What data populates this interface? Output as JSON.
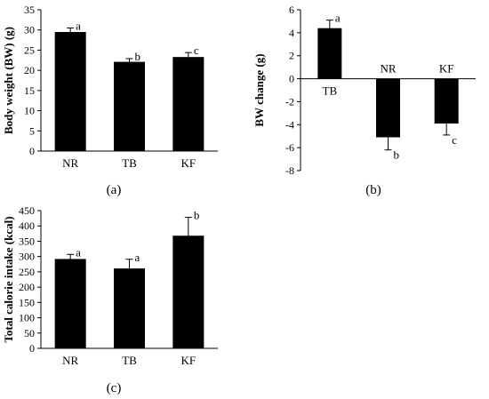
{
  "chart_data": [
    {
      "panel_label": "(a)",
      "type": "bar",
      "ylabel": "Body weight (BW) (g)",
      "xlabel": "",
      "title": "",
      "ylim": [
        0,
        35
      ],
      "yticks": [
        0,
        5,
        10,
        15,
        20,
        25,
        30,
        35
      ],
      "categories": [
        "NR",
        "TB",
        "KF"
      ],
      "values": [
        29.5,
        22.1,
        23.3
      ],
      "errors": [
        1.0,
        0.8,
        1.1
      ],
      "significance": [
        "a",
        "b",
        "c"
      ],
      "bar_color": "#000000",
      "grid": false
    },
    {
      "panel_label": "(b)",
      "type": "bar",
      "ylabel": "BW change (g)",
      "xlabel": "",
      "title": "",
      "ylim": [
        -8,
        6
      ],
      "yticks": [
        -8,
        -6,
        -4,
        -2,
        0,
        2,
        4,
        6
      ],
      "categories": [
        "TB",
        "NR",
        "KF"
      ],
      "values": [
        4.4,
        -5.1,
        -3.9
      ],
      "errors": [
        0.7,
        1.1,
        1.0
      ],
      "significance": [
        "a",
        "b",
        "c"
      ],
      "bar_color": "#000000",
      "grid": false
    },
    {
      "panel_label": "(c)",
      "type": "bar",
      "ylabel": "Total calorie intake (kcal)",
      "xlabel": "",
      "title": "",
      "ylim": [
        0,
        450
      ],
      "yticks": [
        0,
        50,
        100,
        150,
        200,
        250,
        300,
        350,
        400,
        450
      ],
      "categories": [
        "NR",
        "TB",
        "KF"
      ],
      "values": [
        292,
        261,
        368
      ],
      "errors": [
        15,
        30,
        60
      ],
      "significance": [
        "a",
        "a",
        "b"
      ],
      "bar_color": "#000000",
      "grid": false
    }
  ]
}
